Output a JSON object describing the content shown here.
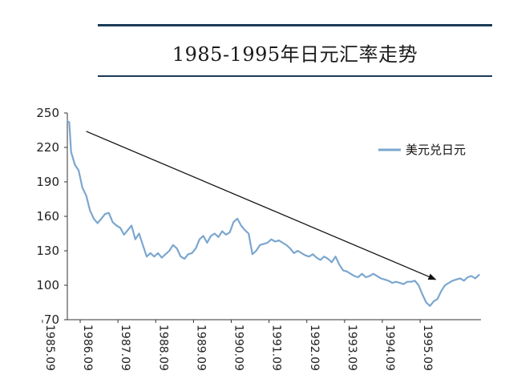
{
  "chart_data": {
    "type": "line",
    "title": "1985-1995年日元汇率走势",
    "xlabel": "",
    "ylabel": "",
    "ylim": [
      70,
      250
    ],
    "y_ticks": [
      "250",
      "220",
      "190",
      "160",
      "130",
      "100",
      "70"
    ],
    "x_ticks": [
      "1985.09",
      "1986.09",
      "1987.09",
      "1988.09",
      "1989.09",
      "1990.09",
      "1991.09",
      "1992.09",
      "1993.09",
      "1994.09",
      "1995.09"
    ],
    "legend_position": "top-right",
    "series": [
      {
        "name": "美元兑日元",
        "color": "#7ba7cf",
        "x": [
          1985.75,
          1985.8,
          1985.85,
          1985.95,
          1986.05,
          1986.15,
          1986.25,
          1986.35,
          1986.45,
          1986.55,
          1986.65,
          1986.75,
          1986.85,
          1986.95,
          1987.05,
          1987.15,
          1987.25,
          1987.35,
          1987.45,
          1987.55,
          1987.65,
          1987.75,
          1987.85,
          1987.95,
          1988.05,
          1988.15,
          1988.25,
          1988.35,
          1988.45,
          1988.55,
          1988.65,
          1988.75,
          1988.85,
          1988.95,
          1989.05,
          1989.15,
          1989.25,
          1989.35,
          1989.45,
          1989.55,
          1989.65,
          1989.75,
          1989.85,
          1989.95,
          1990.05,
          1990.15,
          1990.25,
          1990.35,
          1990.45,
          1990.55,
          1990.65,
          1990.75,
          1990.85,
          1990.95,
          1991.05,
          1991.15,
          1991.25,
          1991.35,
          1991.45,
          1991.55,
          1991.65,
          1991.75,
          1991.85,
          1991.95,
          1992.05,
          1992.15,
          1992.25,
          1992.35,
          1992.45,
          1992.55,
          1992.65,
          1992.75,
          1992.85,
          1992.95,
          1993.05,
          1993.15,
          1993.25,
          1993.35,
          1993.45,
          1993.55,
          1993.65,
          1993.75,
          1993.85,
          1993.95,
          1994.05,
          1994.15,
          1994.25,
          1994.35,
          1994.45,
          1994.55,
          1994.65,
          1994.75,
          1994.85,
          1994.95,
          1995.05,
          1995.15,
          1995.25,
          1995.35,
          1995.45,
          1995.55,
          1995.65,
          1995.75,
          1995.85,
          1995.95,
          1996.05,
          1996.15,
          1996.25,
          1996.35,
          1996.45,
          1996.55,
          1996.65
        ],
        "values": [
          243,
          242,
          216,
          205,
          200,
          185,
          178,
          165,
          158,
          154,
          158,
          162,
          163,
          155,
          152,
          150,
          144,
          148,
          152,
          140,
          145,
          135,
          125,
          128,
          125,
          128,
          124,
          127,
          130,
          135,
          132,
          125,
          123,
          127,
          128,
          132,
          140,
          143,
          137,
          143,
          145,
          142,
          147,
          144,
          146,
          155,
          158,
          152,
          148,
          145,
          127,
          130,
          135,
          136,
          137,
          140,
          138,
          139,
          137,
          135,
          132,
          128,
          130,
          128,
          126,
          125,
          127,
          124,
          122,
          125,
          123,
          120,
          125,
          118,
          113,
          112,
          110,
          108,
          107,
          110,
          107,
          108,
          110,
          108,
          106,
          105,
          104,
          102,
          103,
          102,
          101,
          103,
          103,
          104,
          100,
          92,
          85,
          82,
          86,
          88,
          95,
          100,
          102,
          104,
          105,
          106,
          104,
          107,
          108,
          106,
          109
        ]
      }
    ],
    "annotations": [
      {
        "type": "arrow",
        "from": {
          "x": 1986.25,
          "y": 234
        },
        "to": {
          "x": 1995.5,
          "y": 105
        }
      }
    ]
  }
}
